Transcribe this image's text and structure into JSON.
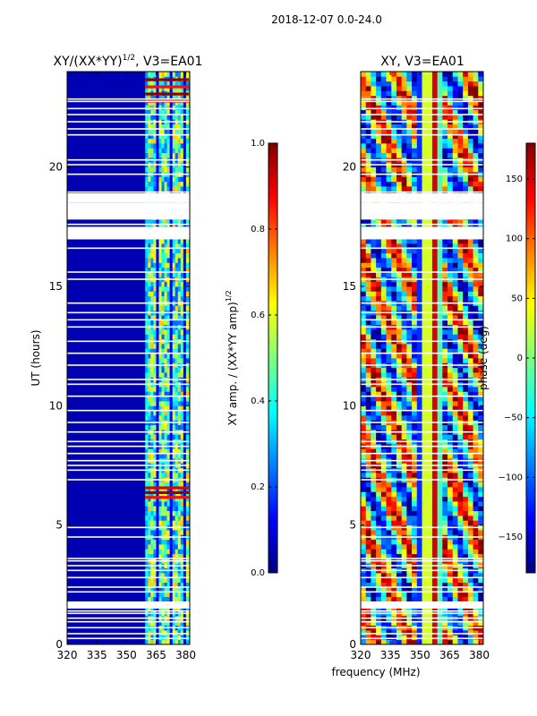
{
  "figure": {
    "suptitle": "2018-12-07 0.0-24.0",
    "shared_xlabel": "frequency (MHz)"
  },
  "colormap": {
    "name": "jet",
    "stops": [
      "#00007f",
      "#0000ff",
      "#007fff",
      "#00ffff",
      "#7fff7f",
      "#ffff00",
      "#ff7f00",
      "#ff0000",
      "#7f0000"
    ]
  },
  "chart_data": [
    {
      "type": "heatmap",
      "title": "XY/(XX*YY)",
      "title_superscript": "1/2",
      "title_suffix": ", V3=EA01",
      "xlabel": "",
      "ylabel": "UT (hours)",
      "xlim": [
        320,
        382
      ],
      "ylim": [
        0,
        24
      ],
      "xticks": [
        320,
        335,
        350,
        365,
        380
      ],
      "yticks": [
        0,
        5,
        10,
        15,
        20
      ],
      "xtick_labels": [
        "320",
        "335",
        "350",
        "365",
        "380"
      ],
      "ytick_labels": [
        "0",
        "5",
        "10",
        "15",
        "20"
      ],
      "value_range": [
        0.0,
        1.0
      ],
      "colorbar": {
        "label": "XY amp. / (XX*YY amp)",
        "label_superscript": "1/2",
        "range": [
          0.0,
          1.0
        ],
        "ticks": [
          0.0,
          0.2,
          0.4,
          0.6,
          0.8,
          1.0
        ],
        "tick_labels": [
          "0.0",
          "0.2",
          "0.4",
          "0.6",
          "0.8",
          "1.0"
        ]
      },
      "bright_band_mhz": [
        359.5,
        381.5
      ],
      "background_value": 0.05,
      "band_value": 0.45,
      "blank_hours": [
        0.25,
        0.45,
        0.7,
        0.95,
        1.1,
        1.3,
        1.4,
        1.55,
        1.65,
        1.75,
        2.2,
        2.4,
        2.8,
        3.1,
        3.3,
        3.5,
        3.6,
        4.5,
        4.9,
        6.9,
        7.3,
        7.5,
        7.7,
        8.0,
        8.3,
        8.5,
        8.9,
        9.3,
        9.8,
        10.4,
        10.9,
        11.1,
        11.7,
        12.2,
        12.7,
        13.3,
        13.6,
        13.9,
        14.3,
        15.3,
        15.6,
        16.6,
        17.0,
        17.6,
        18.7,
        18.95,
        19.7,
        20.1,
        20.3,
        21.35,
        21.6,
        21.9,
        22.2,
        22.45,
        22.75,
        22.85
      ],
      "blank_bands": [
        [
          1.5,
          1.8
        ],
        [
          17.0,
          17.5
        ],
        [
          17.8,
          18.5
        ],
        [
          18.5,
          18.9
        ]
      ],
      "hot_rows": [
        6.1,
        6.3,
        6.5,
        22.7,
        23.0,
        23.3,
        23.6
      ]
    },
    {
      "type": "heatmap",
      "title": "XY, V3=EA01",
      "xlabel": "frequency (MHz)",
      "ylabel": "",
      "xlim": [
        320,
        382
      ],
      "ylim": [
        0,
        24
      ],
      "xticks": [
        320,
        335,
        350,
        365,
        380
      ],
      "yticks": [
        0,
        5,
        10,
        15,
        20
      ],
      "xtick_labels": [
        "320",
        "335",
        "350",
        "365",
        "380"
      ],
      "ytick_labels": [
        "0",
        "5",
        "10",
        "15",
        "20"
      ],
      "value_range": [
        -180,
        180
      ],
      "colorbar": {
        "label": "phase (deg)",
        "range": [
          -180,
          180
        ],
        "ticks": [
          -150,
          -100,
          -50,
          0,
          50,
          100,
          150
        ],
        "tick_labels": [
          "−150",
          "−100",
          "−50",
          "0",
          "50",
          "100",
          "150"
        ]
      },
      "blank_hours": [
        0.25,
        0.45,
        0.7,
        0.95,
        1.1,
        1.3,
        1.4,
        1.55,
        1.65,
        1.75,
        2.2,
        2.4,
        2.8,
        3.1,
        3.3,
        3.5,
        3.6,
        4.5,
        4.9,
        6.9,
        7.3,
        7.5,
        7.7,
        8.0,
        8.3,
        8.5,
        8.9,
        9.3,
        9.8,
        10.4,
        10.9,
        11.1,
        11.7,
        12.2,
        12.7,
        13.3,
        13.6,
        13.9,
        14.3,
        15.3,
        15.6,
        16.6,
        17.0,
        17.6,
        18.7,
        18.95,
        19.7,
        20.1,
        20.3,
        21.35,
        21.6,
        21.9,
        22.2,
        22.45,
        22.75,
        22.85
      ],
      "blank_bands": [
        [
          1.5,
          1.8
        ],
        [
          17.0,
          17.5
        ],
        [
          17.8,
          18.5
        ],
        [
          18.5,
          18.9
        ]
      ],
      "vertical_stripe_mhz": [
        350,
        352,
        354,
        356,
        358,
        360
      ]
    }
  ]
}
